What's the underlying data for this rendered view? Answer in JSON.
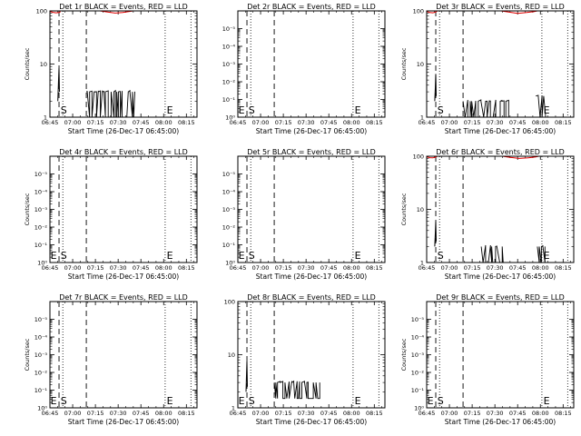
{
  "chart_data": [
    {
      "type": "line",
      "title": "Det 1r BLACK = Events, RED = LLD",
      "xlabel": "Start Time (26-Dec-17 06:45:00)",
      "ylabel": "Counts/sec",
      "xtick_labels": [
        "06:45",
        "07:00",
        "07:15",
        "07:30",
        "07:45",
        "08:00",
        "08:15"
      ],
      "ytick_labels": [
        "1",
        "10",
        "100"
      ],
      "yscale": "log",
      "ylim": [
        1,
        100
      ],
      "xlim_minutes": [
        0,
        97
      ],
      "dashed_lines_minutes": [
        6,
        24
      ],
      "dotted_lines_minutes": [
        8.5,
        76,
        93
      ],
      "markers": [
        {
          "label": "S",
          "x_minutes": 7
        },
        {
          "label": "E",
          "x_minutes": 77
        }
      ],
      "series": [
        {
          "color": "#000000",
          "segments": [
            {
              "kind": "line",
              "points": [
                [
                  5.2,
                  2.0
                ],
                [
                  5.6,
                  4.5
                ],
                [
                  6.0,
                  8.5
                ],
                [
                  6.3,
                  3.0
                ]
              ]
            },
            {
              "kind": "noise",
              "x_start": 24,
              "x_end": 56,
              "low": 1.0,
              "high": 3.0
            }
          ]
        },
        {
          "color": "#e00000",
          "segments": [
            {
              "kind": "line",
              "points": [
                [
                  0,
                  98
                ],
                [
                  2,
                  94
                ],
                [
                  4,
                  92
                ],
                [
                  6,
                  93
                ],
                [
                  7,
                  97
                ]
              ]
            },
            {
              "kind": "line",
              "points": [
                [
                  33,
                  100
                ],
                [
                  38,
                  95
                ],
                [
                  43,
                  91
                ],
                [
                  48,
                  93
                ],
                [
                  53,
                  98
                ],
                [
                  55,
                  100
                ]
              ]
            }
          ]
        }
      ]
    },
    {
      "type": "line",
      "title": "Det 2r BLACK = Events, RED = LLD",
      "xlabel": "Start Time (26-Dec-17 06:45:00)",
      "ylabel": "",
      "xtick_labels": [
        "06:45",
        "07:00",
        "07:15",
        "07:30",
        "07:45",
        "08:00",
        "08:15"
      ],
      "ytick_labels": [
        "10⁰",
        "10⁻¹",
        "10⁻²",
        "10⁻³",
        "10⁻⁴",
        "10⁻⁵"
      ],
      "yscale": "log",
      "ylim": [
        1,
        1000000
      ],
      "xlim_minutes": [
        0,
        97
      ],
      "dashed_lines_minutes": [
        6,
        24
      ],
      "dotted_lines_minutes": [
        8.5,
        76,
        93
      ],
      "markers": [
        {
          "label": "E",
          "x_minutes": 0.4
        },
        {
          "label": "S",
          "x_minutes": 7
        },
        {
          "label": "E",
          "x_minutes": 77
        }
      ],
      "series": []
    },
    {
      "type": "line",
      "title": "Det 3r BLACK = Events, RED = LLD",
      "xlabel": "Start Time (26-Dec-17 06:45:00)",
      "ylabel": "Counts/sec",
      "xtick_labels": [
        "06:45",
        "07:00",
        "07:15",
        "07:30",
        "07:45",
        "08:00",
        "08:15"
      ],
      "ytick_labels": [
        "1",
        "10",
        "100"
      ],
      "yscale": "log",
      "ylim": [
        1,
        100
      ],
      "xlim_minutes": [
        0,
        97
      ],
      "dashed_lines_minutes": [
        6,
        24
      ],
      "dotted_lines_minutes": [
        8.5,
        76,
        93
      ],
      "markers": [
        {
          "label": "S",
          "x_minutes": 7
        },
        {
          "label": "E",
          "x_minutes": 77
        }
      ],
      "series": [
        {
          "color": "#000000",
          "segments": [
            {
              "kind": "line",
              "points": [
                [
                  5.3,
                  2.0
                ],
                [
                  5.7,
                  3.5
                ],
                [
                  6.0,
                  6.5
                ],
                [
                  6.3,
                  2.5
                ]
              ]
            },
            {
              "kind": "noise",
              "x_start": 24,
              "x_end": 56,
              "low": 1.0,
              "high": 2.0
            },
            {
              "kind": "noise",
              "x_start": 72,
              "x_end": 79,
              "low": 1.0,
              "high": 2.5
            }
          ]
        },
        {
          "color": "#e00000",
          "segments": [
            {
              "kind": "line",
              "points": [
                [
                  0,
                  98
                ],
                [
                  2,
                  93
                ],
                [
                  4,
                  92
                ],
                [
                  6,
                  95
                ],
                [
                  7,
                  100
                ]
              ]
            },
            {
              "kind": "line",
              "points": [
                [
                  49,
                  100
                ],
                [
                  54,
                  95
                ],
                [
                  60,
                  90
                ],
                [
                  66,
                  93
                ],
                [
                  71,
                  97
                ],
                [
                  73,
                  100
                ]
              ]
            }
          ]
        }
      ]
    },
    {
      "type": "line",
      "title": "Det 4r BLACK = Events, RED = LLD",
      "xlabel": "Start Time (26-Dec-17 06:45:00)",
      "ylabel": "Counts/sec",
      "xtick_labels": [
        "06:45",
        "07:00",
        "07:15",
        "07:30",
        "07:45",
        "08:00",
        "08:15"
      ],
      "ytick_labels": [
        "10⁰",
        "10⁻¹",
        "10⁻²",
        "10⁻³",
        "10⁻⁴",
        "10⁻⁵"
      ],
      "yscale": "log",
      "ylim": [
        1,
        1000000
      ],
      "xlim_minutes": [
        0,
        97
      ],
      "dashed_lines_minutes": [
        6,
        24
      ],
      "dotted_lines_minutes": [
        8.5,
        76,
        93
      ],
      "markers": [
        {
          "label": "E",
          "x_minutes": 0.4
        },
        {
          "label": "S",
          "x_minutes": 7
        },
        {
          "label": "E",
          "x_minutes": 77
        }
      ],
      "series": []
    },
    {
      "type": "line",
      "title": "Det 5r BLACK = Events, RED = LLD",
      "xlabel": "Start Time (26-Dec-17 06:45:00)",
      "ylabel": "",
      "xtick_labels": [
        "06:45",
        "07:00",
        "07:15",
        "07:30",
        "07:45",
        "08:00",
        "08:15"
      ],
      "ytick_labels": [
        "10⁰",
        "10⁻¹",
        "10⁻²",
        "10⁻³",
        "10⁻⁴",
        "10⁻⁵"
      ],
      "yscale": "log",
      "ylim": [
        1,
        1000000
      ],
      "xlim_minutes": [
        0,
        97
      ],
      "dashed_lines_minutes": [
        6,
        24
      ],
      "dotted_lines_minutes": [
        8.5,
        76,
        93
      ],
      "markers": [
        {
          "label": "E",
          "x_minutes": 0.4
        },
        {
          "label": "S",
          "x_minutes": 7
        },
        {
          "label": "E",
          "x_minutes": 77
        }
      ],
      "series": []
    },
    {
      "type": "line",
      "title": "Det 6r BLACK = Events, RED = LLD",
      "xlabel": "Start Time (26-Dec-17 06:45:00)",
      "ylabel": "Counts/sec",
      "xtick_labels": [
        "06:45",
        "07:00",
        "07:15",
        "07:30",
        "07:45",
        "08:00",
        "08:15"
      ],
      "ytick_labels": [
        "1",
        "10",
        "100"
      ],
      "yscale": "log",
      "ylim": [
        1,
        100
      ],
      "xlim_minutes": [
        0,
        97
      ],
      "dashed_lines_minutes": [
        6,
        24
      ],
      "dotted_lines_minutes": [
        8.5,
        76,
        93
      ],
      "markers": [
        {
          "label": "S",
          "x_minutes": 7
        },
        {
          "label": "E",
          "x_minutes": 77
        }
      ],
      "series": [
        {
          "color": "#000000",
          "segments": [
            {
              "kind": "line",
              "points": [
                [
                  5.3,
                  2.0
                ],
                [
                  5.7,
                  3.5
                ],
                [
                  6.0,
                  6.0
                ],
                [
                  6.3,
                  2.5
                ]
              ]
            },
            {
              "kind": "noise",
              "x_start": 36,
              "x_end": 52,
              "low": 1.0,
              "high": 2.0
            },
            {
              "kind": "noise",
              "x_start": 73,
              "x_end": 78,
              "low": 1.0,
              "high": 2.0
            }
          ]
        },
        {
          "color": "#e00000",
          "segments": [
            {
              "kind": "line",
              "points": [
                [
                  0,
                  98
                ],
                [
                  2,
                  94
                ],
                [
                  4,
                  93
                ],
                [
                  6,
                  96
                ],
                [
                  7,
                  100
                ]
              ]
            },
            {
              "kind": "line",
              "points": [
                [
                  50,
                  100
                ],
                [
                  55,
                  95
                ],
                [
                  61,
                  91
                ],
                [
                  67,
                  93
                ],
                [
                  72,
                  97
                ],
                [
                  74,
                  100
                ]
              ]
            }
          ]
        }
      ]
    },
    {
      "type": "line",
      "title": "Det 7r BLACK = Events, RED = LLD",
      "xlabel": "Start Time (26-Dec-17 06:45:00)",
      "ylabel": "Counts/sec",
      "xtick_labels": [
        "06:45",
        "07:00",
        "07:15",
        "07:30",
        "07:45",
        "08:00",
        "08:15"
      ],
      "ytick_labels": [
        "10⁰",
        "10⁻¹",
        "10⁻²",
        "10⁻³",
        "10⁻⁴",
        "10⁻⁵"
      ],
      "yscale": "log",
      "ylim": [
        1,
        1000000
      ],
      "xlim_minutes": [
        0,
        97
      ],
      "dashed_lines_minutes": [
        6,
        24
      ],
      "dotted_lines_minutes": [
        8.5,
        76,
        93
      ],
      "markers": [
        {
          "label": "E",
          "x_minutes": 0.4
        },
        {
          "label": "S",
          "x_minutes": 7
        },
        {
          "label": "E",
          "x_minutes": 77
        }
      ],
      "series": []
    },
    {
      "type": "line",
      "title": "Det 8r BLACK = Events, RED = LLD",
      "xlabel": "Start Time (26-Dec-17 06:45:00)",
      "ylabel": "",
      "xtick_labels": [
        "06:45",
        "07:00",
        "07:15",
        "07:30",
        "07:45",
        "08:00",
        "08:15"
      ],
      "ytick_labels": [
        "1",
        "10",
        "100"
      ],
      "yscale": "log",
      "ylim": [
        1,
        100
      ],
      "xlim_minutes": [
        0,
        97
      ],
      "dashed_lines_minutes": [
        6,
        24
      ],
      "dotted_lines_minutes": [
        8.5,
        76,
        93
      ],
      "markers": [
        {
          "label": "E",
          "x_minutes": 0.4
        },
        {
          "label": "S",
          "x_minutes": 7
        },
        {
          "label": "E",
          "x_minutes": 77
        }
      ],
      "series": [
        {
          "color": "#000000",
          "segments": [
            {
              "kind": "line",
              "points": [
                [
                  5.4,
                  2.0
                ],
                [
                  5.7,
                  4.0
                ],
                [
                  6.0,
                  7.5
                ],
                [
                  6.3,
                  2.5
                ]
              ]
            },
            {
              "kind": "noise",
              "x_start": 24,
              "x_end": 54,
              "low": 1.5,
              "high": 3.0
            }
          ]
        }
      ]
    },
    {
      "type": "line",
      "title": "Det 9r BLACK = Events, RED = LLD",
      "xlabel": "Start Time (26-Dec-17 06:45:00)",
      "ylabel": "Counts/sec",
      "xtick_labels": [
        "06:45",
        "07:00",
        "07:15",
        "07:30",
        "07:45",
        "08:00",
        "08:15"
      ],
      "ytick_labels": [
        "10⁰",
        "10⁻¹",
        "10⁻²",
        "10⁻³",
        "10⁻⁴",
        "10⁻⁵"
      ],
      "yscale": "log",
      "ylim": [
        1,
        1000000
      ],
      "xlim_minutes": [
        0,
        97
      ],
      "dashed_lines_minutes": [
        6,
        24
      ],
      "dotted_lines_minutes": [
        8.5,
        76,
        93
      ],
      "markers": [
        {
          "label": "E",
          "x_minutes": 0.4
        },
        {
          "label": "S",
          "x_minutes": 7
        },
        {
          "label": "E",
          "x_minutes": 77
        }
      ],
      "series": []
    }
  ]
}
